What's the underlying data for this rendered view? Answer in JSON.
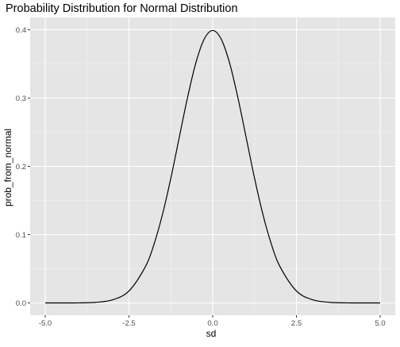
{
  "colors": {
    "panel_background": "#e5e5e5",
    "grid_major": "#ffffff",
    "grid_minor": "#f2f2f2",
    "line": "#000000",
    "tick_text": "#4d4d4d"
  },
  "chart_data": {
    "type": "line",
    "title": "Probability Distribution for Normal Distribution",
    "xlabel": "sd",
    "ylabel": "prob_from_normal",
    "xlim": [
      -5,
      5
    ],
    "ylim": [
      0,
      0.4
    ],
    "x_ticks": [
      -5,
      -2.5,
      0,
      2.5,
      5
    ],
    "x_tick_labels": [
      "-5.0",
      "-2.5",
      "0.0",
      "2.5",
      "5.0"
    ],
    "y_ticks": [
      0,
      0.1,
      0.2,
      0.3,
      0.4
    ],
    "y_tick_labels": [
      "0.0",
      "0.1",
      "0.2",
      "0.3",
      "0.4"
    ],
    "grid": true,
    "legend": "none",
    "series": [
      {
        "x": [
          -5.0,
          -4.5,
          -4.0,
          -3.5,
          -3.0,
          -2.5,
          -2.0,
          -1.75,
          -1.5,
          -1.25,
          -1.0,
          -0.75,
          -0.5,
          -0.25,
          0.0,
          0.25,
          0.5,
          0.75,
          1.0,
          1.25,
          1.5,
          1.75,
          2.0,
          2.5,
          3.0,
          3.5,
          4.0,
          4.5,
          5.0
        ],
        "y": [
          0.0,
          0.0,
          0.0001,
          0.0009,
          0.0044,
          0.0175,
          0.054,
          0.0863,
          0.1295,
          0.1826,
          0.242,
          0.3011,
          0.3521,
          0.3867,
          0.3989,
          0.3867,
          0.3521,
          0.3011,
          0.242,
          0.1826,
          0.1295,
          0.0863,
          0.054,
          0.0175,
          0.0044,
          0.0009,
          0.0001,
          0.0,
          0.0
        ]
      }
    ]
  }
}
